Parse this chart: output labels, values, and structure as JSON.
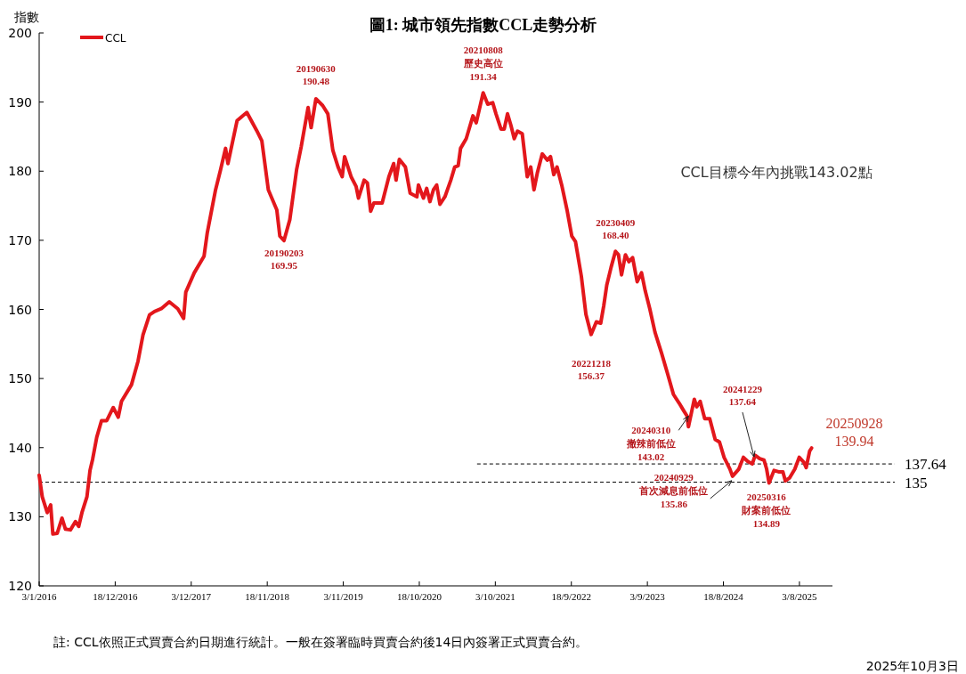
{
  "chart_data": {
    "type": "line",
    "title": "圖1: 城市領先指數CCL走勢分析",
    "ylabel": "指數",
    "xlim": [
      "2016-01-03",
      "2026-01-02"
    ],
    "xticks": [
      {
        "value": "2016-01-03",
        "label": "3/1/2016"
      },
      {
        "value": "2016-12-18",
        "label": "18/12/2016"
      },
      {
        "value": "2017-12-03",
        "label": "3/12/2017"
      },
      {
        "value": "2018-11-18",
        "label": "18/11/2018"
      },
      {
        "value": "2019-11-03",
        "label": "3/11/2019"
      },
      {
        "value": "2020-10-18",
        "label": "18/10/2020"
      },
      {
        "value": "2021-10-03",
        "label": "3/10/2021"
      },
      {
        "value": "2022-09-18",
        "label": "18/9/2022"
      },
      {
        "value": "2023-09-03",
        "label": "3/9/2023"
      },
      {
        "value": "2024-08-18",
        "label": "18/8/2024"
      },
      {
        "value": "2025-08-03",
        "label": "3/8/2025"
      }
    ],
    "ylim": [
      120,
      200
    ],
    "yticks": [
      120,
      130,
      140,
      150,
      160,
      170,
      180,
      190,
      200
    ],
    "grid": false,
    "legend": "top left",
    "marker": "none",
    "line_style": "solid",
    "series": [
      {
        "name": "CCL",
        "color": "#e3171c",
        "x": [
          "2016-01-03",
          "2016-01-17",
          "2016-02-09",
          "2016-02-25",
          "2016-03-06",
          "2016-03-26",
          "2016-04-17",
          "2016-05-03",
          "2016-05-26",
          "2016-06-18",
          "2016-07-03",
          "2016-07-18",
          "2016-08-10",
          "2016-08-24",
          "2016-09-05",
          "2016-09-24",
          "2016-10-16",
          "2016-11-09",
          "2016-12-09",
          "2017-01-01",
          "2017-01-16",
          "2017-03-03",
          "2017-04-02",
          "2017-04-25",
          "2017-05-25",
          "2017-06-17",
          "2017-07-18",
          "2017-08-24",
          "2017-10-02",
          "2017-10-29",
          "2017-11-08",
          "2017-12-17",
          "2018-01-31",
          "2018-02-15",
          "2018-03-25",
          "2018-04-17",
          "2018-05-10",
          "2018-05-21",
          "2018-07-02",
          "2018-08-16",
          "2018-09-30",
          "2018-10-24",
          "2018-11-23",
          "2019-01-01",
          "2019-01-15",
          "2019-02-03",
          "2019-03-02",
          "2019-04-02",
          "2019-04-23",
          "2019-05-25",
          "2019-06-08",
          "2019-06-30",
          "2019-07-31",
          "2019-08-24",
          "2019-09-16",
          "2019-10-10",
          "2019-10-29",
          "2019-11-09",
          "2019-12-09",
          "2020-01-01",
          "2020-01-12",
          "2020-02-07",
          "2020-02-22",
          "2020-03-08",
          "2020-03-23",
          "2020-04-30",
          "2020-05-31",
          "2020-06-22",
          "2020-07-03",
          "2020-07-18",
          "2020-08-15",
          "2020-09-06",
          "2020-10-07",
          "2020-10-14",
          "2020-11-06",
          "2020-11-21",
          "2020-12-06",
          "2020-12-22",
          "2021-01-06",
          "2021-01-21",
          "2021-02-13",
          "2021-03-12",
          "2021-03-30",
          "2021-04-15",
          "2021-04-26",
          "2021-05-22",
          "2021-06-22",
          "2021-07-07",
          "2021-08-08",
          "2021-08-29",
          "2021-09-21",
          "2021-10-06",
          "2021-10-29",
          "2021-11-13",
          "2021-11-28",
          "2021-12-14",
          "2021-12-29",
          "2022-01-13",
          "2022-02-04",
          "2022-02-27",
          "2022-03-15",
          "2022-03-30",
          "2022-04-14",
          "2022-05-07",
          "2022-05-30",
          "2022-06-14",
          "2022-06-29",
          "2022-07-14",
          "2022-08-06",
          "2022-08-29",
          "2022-09-20",
          "2022-10-07",
          "2022-11-03",
          "2022-11-24",
          "2022-12-18",
          "2023-01-11",
          "2023-01-31",
          "2023-02-14",
          "2023-02-28",
          "2023-03-20",
          "2023-04-09",
          "2023-04-23",
          "2023-05-07",
          "2023-05-25",
          "2023-06-10",
          "2023-06-27",
          "2023-07-18",
          "2023-08-07",
          "2023-08-24",
          "2023-09-14",
          "2023-10-08",
          "2023-11-07",
          "2023-12-05",
          "2024-01-01",
          "2024-01-28",
          "2024-02-18",
          "2024-03-03",
          "2024-03-10",
          "2024-04-06",
          "2024-04-17",
          "2024-05-03",
          "2024-05-24",
          "2024-06-16",
          "2024-07-11",
          "2024-07-31",
          "2024-08-21",
          "2024-09-17",
          "2024-09-29",
          "2024-10-28",
          "2024-11-18",
          "2024-12-08",
          "2024-12-29",
          "2025-01-11",
          "2025-02-01",
          "2025-02-21",
          "2025-03-05",
          "2025-03-16",
          "2025-04-08",
          "2025-04-29",
          "2025-05-19",
          "2025-05-30",
          "2025-06-18",
          "2025-07-13",
          "2025-08-02",
          "2025-08-23",
          "2025-09-03",
          "2025-09-19",
          "2025-09-28"
        ],
        "values": [
          136.0,
          132.9,
          130.6,
          131.7,
          127.5,
          127.6,
          129.8,
          128.2,
          128.1,
          129.3,
          128.6,
          130.6,
          132.9,
          136.7,
          138.3,
          141.5,
          143.9,
          143.9,
          145.8,
          144.4,
          146.7,
          149.1,
          152.5,
          156.3,
          159.2,
          159.7,
          160.1,
          161.1,
          160.1,
          158.7,
          162.5,
          165.3,
          167.7,
          171.1,
          177.3,
          180.2,
          183.3,
          181.1,
          187.3,
          188.5,
          185.9,
          184.4,
          177.3,
          174.4,
          170.6,
          169.95,
          173.0,
          180.2,
          183.5,
          189.2,
          186.3,
          190.48,
          189.5,
          188.3,
          183.0,
          180.6,
          179.2,
          182.1,
          179.2,
          177.8,
          176.1,
          178.7,
          178.3,
          174.2,
          175.4,
          175.4,
          179.2,
          181.1,
          178.7,
          181.7,
          180.6,
          176.8,
          176.3,
          178.0,
          176.1,
          177.5,
          175.6,
          177.3,
          178.0,
          175.2,
          176.3,
          178.7,
          180.6,
          180.8,
          183.3,
          184.7,
          188.0,
          187.0,
          191.34,
          189.7,
          189.9,
          188.3,
          186.1,
          186.1,
          188.3,
          186.6,
          184.7,
          185.8,
          185.4,
          179.2,
          180.6,
          177.3,
          179.7,
          182.5,
          181.6,
          182.1,
          179.5,
          180.6,
          177.8,
          174.4,
          170.6,
          169.8,
          164.8,
          159.3,
          156.37,
          158.2,
          158.0,
          160.5,
          163.5,
          166.1,
          168.4,
          167.9,
          165.0,
          167.9,
          166.9,
          167.5,
          164.0,
          165.3,
          162.7,
          160.1,
          156.7,
          153.7,
          150.7,
          147.7,
          146.4,
          145.3,
          144.6,
          143.02,
          147.0,
          145.9,
          146.7,
          144.2,
          144.2,
          141.2,
          140.8,
          138.6,
          136.9,
          135.86,
          136.9,
          138.6,
          138.0,
          137.64,
          138.9,
          138.4,
          138.2,
          136.9,
          134.89,
          136.7,
          136.5,
          136.5,
          135.2,
          135.6,
          136.9,
          138.6,
          137.9,
          137.1,
          139.5,
          139.94
        ]
      }
    ],
    "ref_lines": [
      {
        "axis": "y",
        "value": 137.64,
        "label": "137.64",
        "color": "#000000",
        "line_style": "dashed"
      },
      {
        "axis": "y",
        "value": 135,
        "label": "135",
        "color": "#000000",
        "line_style": "dashed"
      }
    ],
    "annotations": [
      {
        "text": "20190203\n169.95",
        "x": "2019-02-03",
        "y": 169.95
      },
      {
        "text": "20190630\n190.48",
        "x": "2019-06-30",
        "y": 190.48
      },
      {
        "text": "20210808\n歷史高位\n191.34",
        "x": "2021-08-08",
        "y": 191.34
      },
      {
        "text": "20221218\n156.37",
        "x": "2022-12-18",
        "y": 156.37
      },
      {
        "text": "20230409\n168.40",
        "x": "2023-04-09",
        "y": 168.4
      },
      {
        "text": "20240310\n撤辣前低位\n143.02",
        "x": "2024-03-10",
        "y": 143.02
      },
      {
        "text": "20240929\n首次減息前低位\n135.86",
        "x": "2024-09-29",
        "y": 135.86
      },
      {
        "text": "20241229\n137.64",
        "x": "2024-12-29",
        "y": 137.64
      },
      {
        "text": "20250316\n財案前低位\n134.89",
        "x": "2025-03-16",
        "y": 134.89
      },
      {
        "text": "20250928\n139.94",
        "x": "2025-09-28",
        "y": 139.94
      },
      "CCL目標今年內挑戰143.02點",
      "註: CCL依照正式買賣合約日期進行統計。一般在簽署臨時買賣合約後14日內簽署正式買賣合約。",
      "2025年10月3日"
    ]
  }
}
